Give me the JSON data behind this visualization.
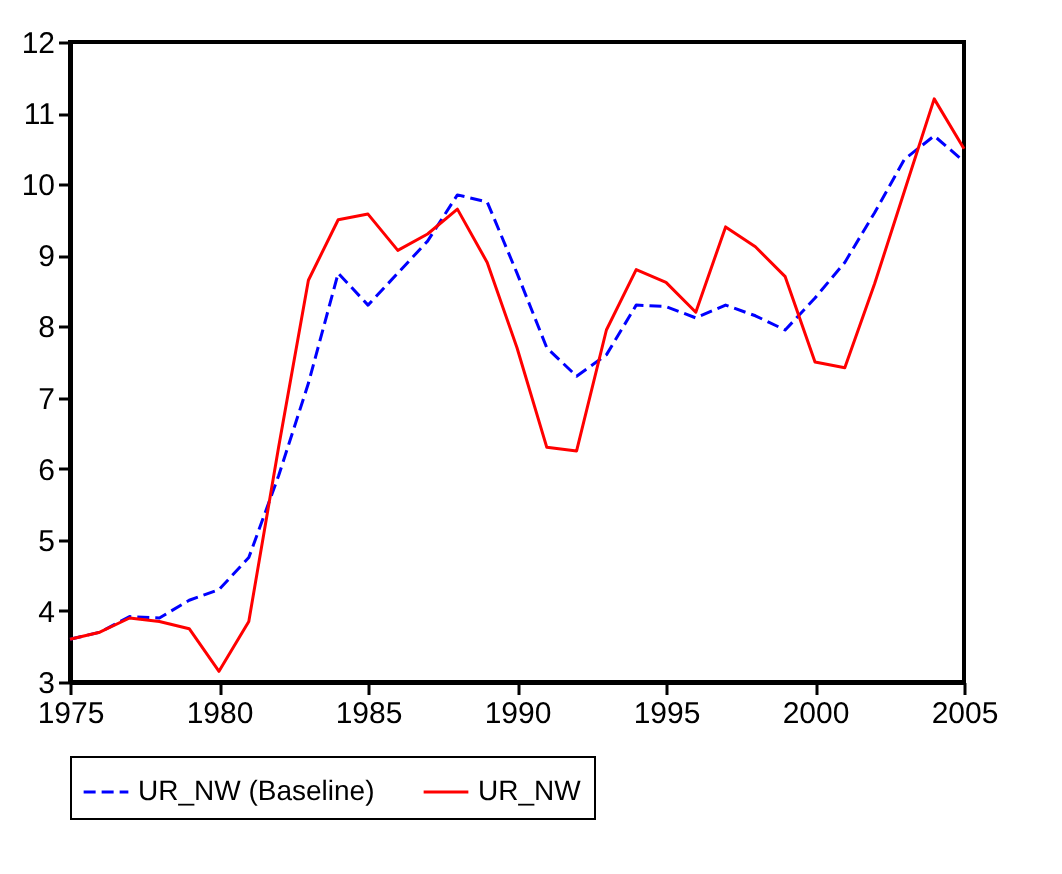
{
  "chart_data": {
    "type": "line",
    "x": [
      1975,
      1976,
      1977,
      1978,
      1979,
      1980,
      1981,
      1982,
      1983,
      1984,
      1985,
      1986,
      1987,
      1988,
      1989,
      1990,
      1991,
      1992,
      1993,
      1994,
      1995,
      1996,
      1997,
      1998,
      1999,
      2000,
      2001,
      2002,
      2003,
      2004,
      2005
    ],
    "series": [
      {
        "name": "UR_NW (Baseline)",
        "color": "#0000ff",
        "line_style": "dashed",
        "values": [
          3.6,
          3.7,
          3.92,
          3.9,
          4.15,
          4.3,
          4.75,
          5.9,
          7.2,
          8.75,
          8.3,
          8.75,
          9.2,
          9.85,
          9.75,
          8.75,
          7.7,
          7.3,
          7.6,
          8.3,
          8.28,
          8.12,
          8.3,
          8.15,
          7.95,
          8.4,
          8.9,
          9.6,
          10.35,
          10.68,
          10.32
        ]
      },
      {
        "name": "UR_NW",
        "color": "#ff0000",
        "line_style": "solid",
        "values": [
          3.6,
          3.7,
          3.9,
          3.85,
          3.75,
          3.15,
          3.85,
          6.3,
          8.65,
          9.5,
          9.58,
          9.07,
          9.3,
          9.65,
          8.9,
          7.7,
          6.3,
          6.25,
          7.95,
          8.8,
          8.62,
          8.2,
          9.4,
          9.12,
          8.7,
          7.5,
          7.42,
          8.6,
          9.9,
          11.2,
          10.5
        ]
      }
    ],
    "xlim": [
      1975,
      2005
    ],
    "xticks": [
      1975,
      1980,
      1985,
      1990,
      1995,
      2000,
      2005
    ],
    "ylim": [
      3,
      12
    ],
    "yticks": [
      3,
      4,
      5,
      6,
      7,
      8,
      9,
      10,
      11,
      12
    ],
    "grid": false,
    "legend": "bottom",
    "marker": "none"
  }
}
